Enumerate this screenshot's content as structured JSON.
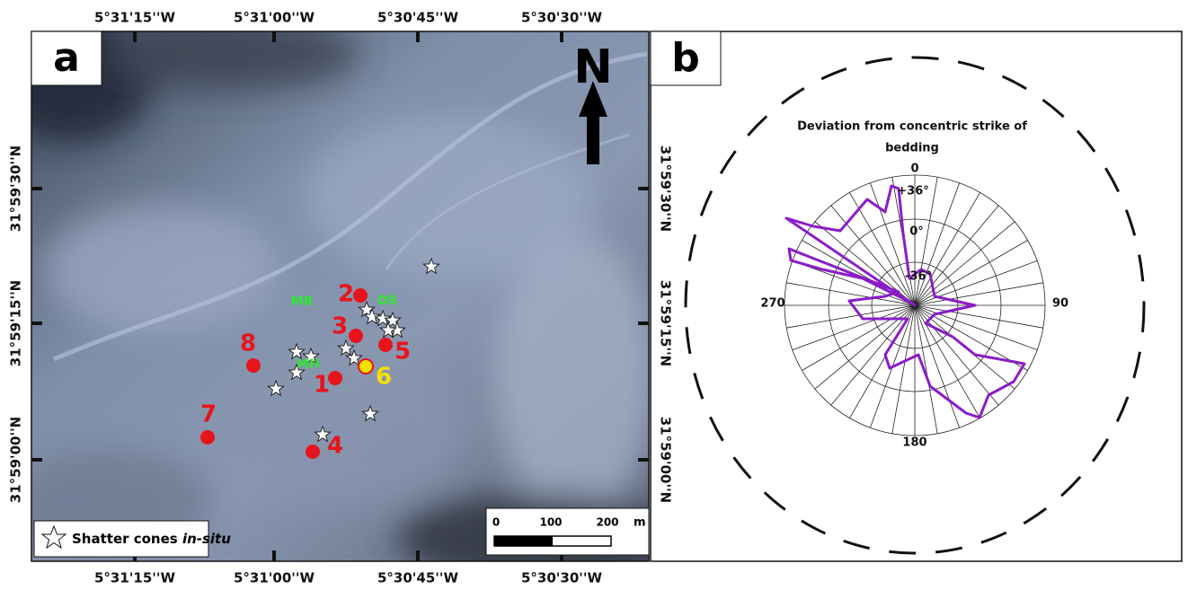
{
  "panel_labels": [
    "a",
    "b"
  ],
  "longitude_labels": [
    "5°31'15''W",
    "5°31'00''W",
    "5°30'45''W",
    "5°30'30''W"
  ],
  "latitude_labels": [
    "31°59'30''N",
    "31°59'15''N",
    "31°59'00''N"
  ],
  "north": "N",
  "sites": [
    "1",
    "2",
    "3",
    "4",
    "5",
    "6",
    "7",
    "8"
  ],
  "areas": [
    "MR",
    "DS",
    "MH"
  ],
  "legend": {
    "text": "Shatter cones ",
    "italic": "in-situ"
  },
  "scale_bar": {
    "ticks": [
      "0",
      "100",
      "200"
    ],
    "unit": "m"
  },
  "rose": {
    "title_lines": [
      "Deviation from concentric strike of",
      "bedding"
    ],
    "ring_labels": [
      "0",
      "+36°",
      "0°",
      "-36°"
    ],
    "direction_labels": [
      "90",
      "180",
      "270"
    ]
  }
}
